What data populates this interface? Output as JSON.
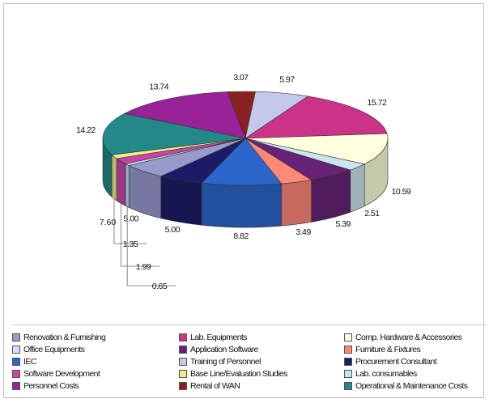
{
  "chart_data": {
    "type": "pie",
    "title": "",
    "slices": [
      {
        "label": "Renovation & Furnishing",
        "value": 5.0,
        "value_label": "5.00",
        "color": "#9999cc"
      },
      {
        "label": "Lab. Equipments",
        "value": 15.72,
        "value_label": "15.72",
        "color": "#cc3388"
      },
      {
        "label": "Comp. Hardware & Accessories",
        "value": 10.59,
        "value_label": "10.59",
        "color": "#ffffdd"
      },
      {
        "label": "Office Equipments",
        "value": 2.51,
        "value_label": "2.51",
        "color": "#cce4ee"
      },
      {
        "label": "Application Software",
        "value": 5.39,
        "value_label": "5.39",
        "color": "#662277"
      },
      {
        "label": "Furniture & Fixtures",
        "value": 3.49,
        "value_label": "3.49",
        "color": "#ff8877"
      },
      {
        "label": "IEC",
        "value": 8.82,
        "value_label": "8.82",
        "color": "#2a66cc"
      },
      {
        "label": "Training of Personnel",
        "value": 5.97,
        "value_label": "5.97",
        "color": "#c4c8ea"
      },
      {
        "label": "Procurement Consultant",
        "value": 5.0,
        "value_label": "5.00",
        "color": "#1c1c66"
      },
      {
        "label": "Software Development",
        "value": 1.99,
        "value_label": "1.99",
        "color": "#cc44aa"
      },
      {
        "label": "Base Line/Evaluation Studies",
        "value": 1.35,
        "value_label": "1.35",
        "color": "#eeee88"
      },
      {
        "label": "Lab. consumables",
        "value": 0.65,
        "value_label": "0.65",
        "color": "#bfe6f0"
      },
      {
        "label": "Personnel Costs",
        "value": 13.74,
        "value_label": "13.74",
        "color": "#992299"
      },
      {
        "label": "Rental of WAN",
        "value": 3.07,
        "value_label": "3.07",
        "color": "#882222"
      },
      {
        "label": "Operational & Maintenance Costs",
        "value": 14.22,
        "value_label": "14.22",
        "color": "#228888"
      }
    ],
    "extra_labels": [
      "7.60"
    ],
    "legend_placement": "bottom",
    "legend_columns": 3
  }
}
